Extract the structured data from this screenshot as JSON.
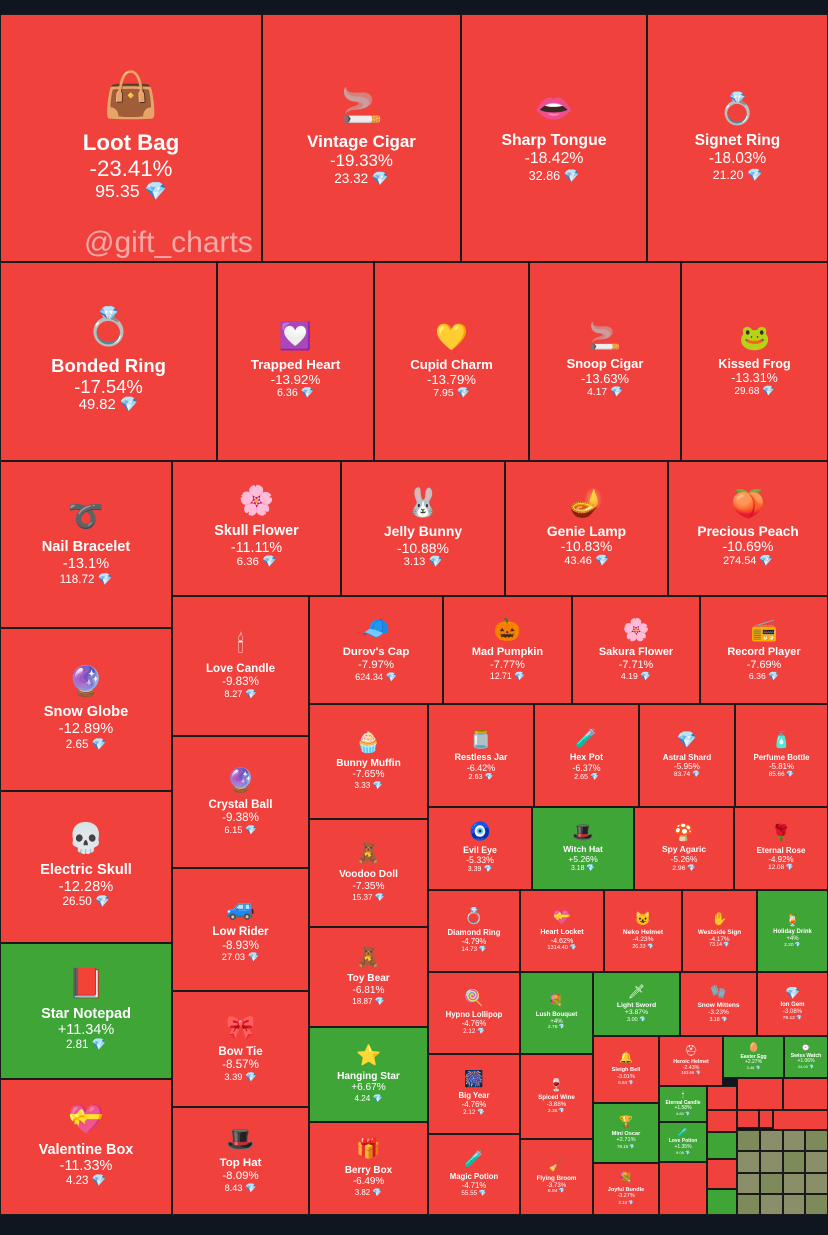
{
  "watermark": "@gift_charts",
  "gem_symbol": "💎",
  "colors": {
    "down": "#f0413d",
    "up": "#3fa537",
    "border": "#1a1a1a"
  },
  "chart_data": {
    "type": "treemap",
    "items": [
      {
        "name": "Loot Bag",
        "change": "-23.41%",
        "price": "95.35",
        "icon": "👜"
      },
      {
        "name": "Vintage Cigar",
        "change": "-19.33%",
        "price": "23.32",
        "icon": "🚬"
      },
      {
        "name": "Sharp Tongue",
        "change": "-18.42%",
        "price": "32.86",
        "icon": "👄"
      },
      {
        "name": "Signet Ring",
        "change": "-18.03%",
        "price": "21.20",
        "icon": "💍"
      },
      {
        "name": "Bonded Ring",
        "change": "-17.54%",
        "price": "49.82",
        "icon": "💍"
      },
      {
        "name": "Trapped Heart",
        "change": "-13.92%",
        "price": "6.36",
        "icon": "💟"
      },
      {
        "name": "Cupid Charm",
        "change": "-13.79%",
        "price": "7.95",
        "icon": "💛"
      },
      {
        "name": "Snoop Cigar",
        "change": "-13.63%",
        "price": "4.17",
        "icon": "🚬"
      },
      {
        "name": "Kissed Frog",
        "change": "-13.31%",
        "price": "29.68",
        "icon": "🐸"
      },
      {
        "name": "Nail Bracelet",
        "change": "-13.1%",
        "price": "118.72",
        "icon": "➰"
      },
      {
        "name": "Skull Flower",
        "change": "-11.11%",
        "price": "6.36",
        "icon": "🌸"
      },
      {
        "name": "Jelly Bunny",
        "change": "-10.88%",
        "price": "3.13",
        "icon": "🐰"
      },
      {
        "name": "Genie Lamp",
        "change": "-10.83%",
        "price": "43.46",
        "icon": "🪔"
      },
      {
        "name": "Precious Peach",
        "change": "-10.69%",
        "price": "274.54",
        "icon": "🍑"
      },
      {
        "name": "Snow Globe",
        "change": "-12.89%",
        "price": "2.65",
        "icon": "🔮"
      },
      {
        "name": "Love Candle",
        "change": "-9.83%",
        "price": "8.27",
        "icon": "🕯"
      },
      {
        "name": "Durov's Cap",
        "change": "-7.97%",
        "price": "624.34",
        "icon": "🧢"
      },
      {
        "name": "Mad Pumpkin",
        "change": "-7.77%",
        "price": "12.71",
        "icon": "🎃"
      },
      {
        "name": "Sakura Flower",
        "change": "-7.71%",
        "price": "4.19",
        "icon": "🌸"
      },
      {
        "name": "Record Player",
        "change": "-7.69%",
        "price": "6.36",
        "icon": "📻"
      },
      {
        "name": "Electric Skull",
        "change": "-12.28%",
        "price": "26.50",
        "icon": "💀"
      },
      {
        "name": "Crystal Ball",
        "change": "-9.38%",
        "price": "6.15",
        "icon": "🔮"
      },
      {
        "name": "Bunny Muffin",
        "change": "-7.65%",
        "price": "3.33",
        "icon": "🧁"
      },
      {
        "name": "Restless Jar",
        "change": "-6.42%",
        "price": "2.63",
        "icon": "🫙"
      },
      {
        "name": "Hex Pot",
        "change": "-6.37%",
        "price": "2.65",
        "icon": "🧪"
      },
      {
        "name": "Astral Shard",
        "change": "-5.95%",
        "price": "83.74",
        "icon": "💎"
      },
      {
        "name": "Perfume Bottle",
        "change": "-5.81%",
        "price": "85.66",
        "icon": "🧴"
      },
      {
        "name": "Evil Eye",
        "change": "-5.33%",
        "price": "3.39",
        "icon": "🧿"
      },
      {
        "name": "Witch Hat",
        "change": "+5.26%",
        "price": "3.18",
        "icon": "🎩"
      },
      {
        "name": "Spy Agaric",
        "change": "-5.26%",
        "price": "2.96",
        "icon": "🍄"
      },
      {
        "name": "Eternal Rose",
        "change": "-4.92%",
        "price": "12.08",
        "icon": "🌹"
      },
      {
        "name": "Voodoo Doll",
        "change": "-7.35%",
        "price": "15.37",
        "icon": "🧸"
      },
      {
        "name": "Low Rider",
        "change": "-8.93%",
        "price": "27.03",
        "icon": "🚙"
      },
      {
        "name": "Diamond Ring",
        "change": "-4.79%",
        "price": "14.73",
        "icon": "💍"
      },
      {
        "name": "Heart Locket",
        "change": "-4.62%",
        "price": "1314.40",
        "icon": "💝"
      },
      {
        "name": "Neko Helmet",
        "change": "-4.23%",
        "price": "26.33",
        "icon": "😺"
      },
      {
        "name": "Westside Sign",
        "change": "-4.17%",
        "price": "73.14",
        "icon": "✋"
      },
      {
        "name": "Holiday Drink",
        "change": "+4%",
        "price": "2.20",
        "icon": "🍹"
      },
      {
        "name": "Star Notepad",
        "change": "+11.34%",
        "price": "2.81",
        "icon": "📕"
      },
      {
        "name": "Toy Bear",
        "change": "-6.81%",
        "price": "18.87",
        "icon": "🧸"
      },
      {
        "name": "Hypno Lollipop",
        "change": "-4.76%",
        "price": "2.12",
        "icon": "🍭"
      },
      {
        "name": "Lush Bouquet",
        "change": "+4%",
        "price": "2.75",
        "icon": "💐"
      },
      {
        "name": "Light Sword",
        "change": "+3.87%",
        "price": "3.00",
        "icon": "🗡"
      },
      {
        "name": "Snow Mittens",
        "change": "-3.23%",
        "price": "3.18",
        "icon": "🧤"
      },
      {
        "name": "Ion Gem",
        "change": "-3.08%",
        "price": "79.12",
        "icon": "💎"
      },
      {
        "name": "Bow Tie",
        "change": "-8.57%",
        "price": "3.39",
        "icon": "🎀"
      },
      {
        "name": "Hanging Star",
        "change": "+6.67%",
        "price": "4.24",
        "icon": "⭐"
      },
      {
        "name": "Big Year",
        "change": "-4.76%",
        "price": "2.12",
        "icon": "🎆"
      },
      {
        "name": "Spiced Wine",
        "change": "-3.88%",
        "price": "2.36",
        "icon": "🍷"
      },
      {
        "name": "Sleigh Bell",
        "change": "-3.01%",
        "price": "6.84",
        "icon": "🔔"
      },
      {
        "name": "Heroic Helmet",
        "change": "-2.43%",
        "price": "163.66",
        "icon": "⛑"
      },
      {
        "name": "Easter Egg",
        "change": "+2.27%",
        "price": "3.46",
        "icon": "🥚"
      },
      {
        "name": "Swiss Watch",
        "change": "+1.06%",
        "price": "24.00",
        "icon": "⌚"
      },
      {
        "name": "Valentine Box",
        "change": "-11.33%",
        "price": "4.23",
        "icon": "💝"
      },
      {
        "name": "Top Hat",
        "change": "-8.09%",
        "price": "8.43",
        "icon": "🎩"
      },
      {
        "name": "Berry Box",
        "change": "-6.49%",
        "price": "3.82",
        "icon": "🎁"
      },
      {
        "name": "Magic Potion",
        "change": "-4.71%",
        "price": "55.55",
        "icon": "🧪"
      },
      {
        "name": "Flying Broom",
        "change": "-3.73%",
        "price": "6.84",
        "icon": "🧹"
      },
      {
        "name": "Mini Oscar",
        "change": "+2.71%",
        "price": "78.15",
        "icon": "🏆"
      },
      {
        "name": "Joyful Bundle",
        "change": "-3.27%",
        "price": "3.13",
        "icon": "💐"
      },
      {
        "name": "Eternal Candle",
        "change": "+1.58%",
        "price": "4.80",
        "icon": "🕯"
      },
      {
        "name": "Love Potion",
        "change": "+1.35%",
        "price": "9.06",
        "icon": "🧪"
      }
    ]
  }
}
